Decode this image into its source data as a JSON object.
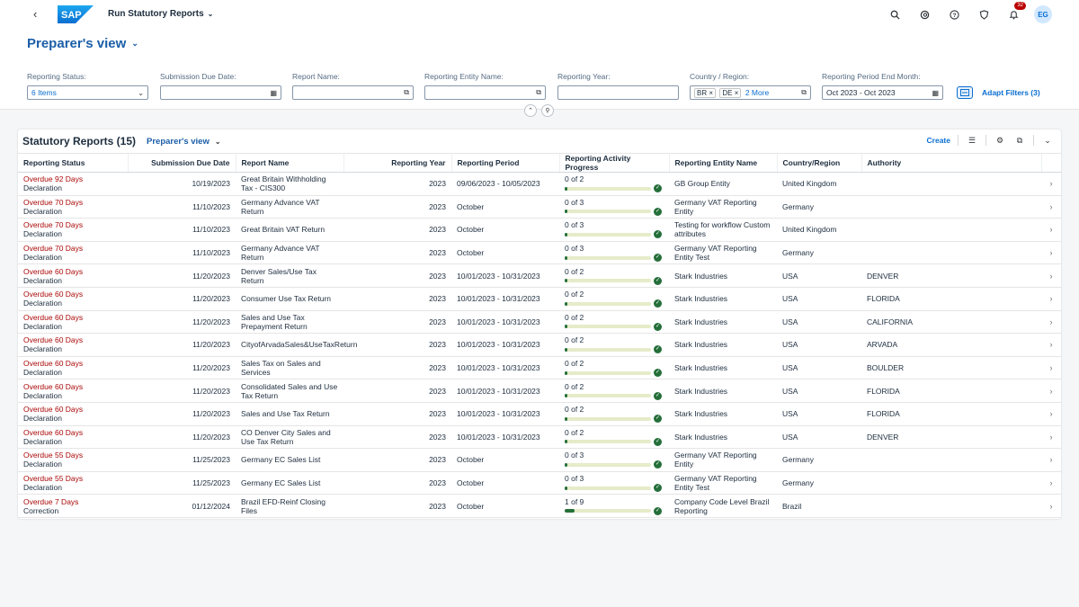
{
  "shell": {
    "back_icon": "chevron-left-icon",
    "logo_text": "SAP",
    "app_title": "Run Statutory Reports",
    "notification_count": "32",
    "avatar_initials": "EG"
  },
  "header": {
    "variant_name": "Preparer's view",
    "filters": [
      {
        "label": "Reporting Status:",
        "value": "6 Items"
      },
      {
        "label": "Submission Due Date:",
        "value": ""
      },
      {
        "label": "Report Name:",
        "value": ""
      },
      {
        "label": "Reporting Entity Name:",
        "value": ""
      },
      {
        "label": "Reporting Year:",
        "value": ""
      },
      {
        "label": "Country / Region:",
        "tokens": [
          "BR",
          "DE"
        ],
        "more": "2 More"
      },
      {
        "label": "Reporting Period End Month:",
        "value": "Oct 2023 - Oct 2023"
      }
    ],
    "adapt_filters": "Adapt Filters (3)"
  },
  "table": {
    "title": "Statutory Reports (15)",
    "variant_name": "Preparer's view",
    "create_label": "Create",
    "columns": [
      "Reporting Status",
      "Submission Due Date",
      "Report Name",
      "Reporting Year",
      "Reporting Period",
      "Reporting Activity Progress",
      "Reporting Entity Name",
      "Country/Region",
      "Authority"
    ],
    "rows": [
      {
        "status": "Overdue 92 Days",
        "type": "Declaration",
        "due": "10/19/2023",
        "name": "Great Britain Withholding Tax - CIS300",
        "year": "2023",
        "period": "09/06/2023 - 10/05/2023",
        "progress": "0 of 2",
        "progress_value": 0,
        "entity": "GB Group Entity",
        "country": "United Kingdom",
        "authority": ""
      },
      {
        "status": "Overdue 70 Days",
        "type": "Declaration",
        "due": "11/10/2023",
        "name": "Germany Advance VAT Return",
        "year": "2023",
        "period": "October",
        "progress": "0 of 3",
        "progress_value": 0,
        "entity": "Germany VAT Reporting Entity",
        "country": "Germany",
        "authority": ""
      },
      {
        "status": "Overdue 70 Days",
        "type": "Declaration",
        "due": "11/10/2023",
        "name": "Great Britain VAT Return",
        "year": "2023",
        "period": "October",
        "progress": "0 of 3",
        "progress_value": 0,
        "entity": "Testing for workflow Custom attributes",
        "country": "United Kingdom",
        "authority": ""
      },
      {
        "status": "Overdue 70 Days",
        "type": "Declaration",
        "due": "11/10/2023",
        "name": "Germany Advance VAT Return",
        "year": "2023",
        "period": "October",
        "progress": "0 of 3",
        "progress_value": 0,
        "entity": "Germany VAT Reporting Entity Test",
        "country": "Germany",
        "authority": ""
      },
      {
        "status": "Overdue 60 Days",
        "type": "Declaration",
        "due": "11/20/2023",
        "name": "Denver Sales/Use Tax Return",
        "year": "2023",
        "period": "10/01/2023 - 10/31/2023",
        "progress": "0 of 2",
        "progress_value": 0,
        "entity": "Stark Industries",
        "country": "USA",
        "authority": "DENVER"
      },
      {
        "status": "Overdue 60 Days",
        "type": "Declaration",
        "due": "11/20/2023",
        "name": "Consumer Use Tax Return",
        "year": "2023",
        "period": "10/01/2023 - 10/31/2023",
        "progress": "0 of 2",
        "progress_value": 0,
        "entity": "Stark Industries",
        "country": "USA",
        "authority": "FLORIDA"
      },
      {
        "status": "Overdue 60 Days",
        "type": "Declaration",
        "due": "11/20/2023",
        "name": "Sales and Use Tax Prepayment Return",
        "year": "2023",
        "period": "10/01/2023 - 10/31/2023",
        "progress": "0 of 2",
        "progress_value": 0,
        "entity": "Stark Industries",
        "country": "USA",
        "authority": "CALIFORNIA"
      },
      {
        "status": "Overdue 60 Days",
        "type": "Declaration",
        "due": "11/20/2023",
        "name": "CityofArvadaSales&UseTaxReturn",
        "year": "2023",
        "period": "10/01/2023 - 10/31/2023",
        "progress": "0 of 2",
        "progress_value": 0,
        "entity": "Stark Industries",
        "country": "USA",
        "authority": "ARVADA"
      },
      {
        "status": "Overdue 60 Days",
        "type": "Declaration",
        "due": "11/20/2023",
        "name": "Sales Tax on Sales and Services",
        "year": "2023",
        "period": "10/01/2023 - 10/31/2023",
        "progress": "0 of 2",
        "progress_value": 0,
        "entity": "Stark Industries",
        "country": "USA",
        "authority": "BOULDER"
      },
      {
        "status": "Overdue 60 Days",
        "type": "Declaration",
        "due": "11/20/2023",
        "name": "Consolidated Sales and Use Tax Return",
        "year": "2023",
        "period": "10/01/2023 - 10/31/2023",
        "progress": "0 of 2",
        "progress_value": 0,
        "entity": "Stark Industries",
        "country": "USA",
        "authority": "FLORIDA"
      },
      {
        "status": "Overdue 60 Days",
        "type": "Declaration",
        "due": "11/20/2023",
        "name": "Sales and Use Tax Return",
        "year": "2023",
        "period": "10/01/2023 - 10/31/2023",
        "progress": "0 of 2",
        "progress_value": 0,
        "entity": "Stark Industries",
        "country": "USA",
        "authority": "FLORIDA"
      },
      {
        "status": "Overdue 60 Days",
        "type": "Declaration",
        "due": "11/20/2023",
        "name": "CO Denver City Sales and Use Tax Return",
        "year": "2023",
        "period": "10/01/2023 - 10/31/2023",
        "progress": "0 of 2",
        "progress_value": 0,
        "entity": "Stark Industries",
        "country": "USA",
        "authority": "DENVER"
      },
      {
        "status": "Overdue 55 Days",
        "type": "Declaration",
        "due": "11/25/2023",
        "name": "Germany EC Sales List",
        "year": "2023",
        "period": "October",
        "progress": "0 of 3",
        "progress_value": 0,
        "entity": "Germany VAT Reporting Entity",
        "country": "Germany",
        "authority": ""
      },
      {
        "status": "Overdue 55 Days",
        "type": "Declaration",
        "due": "11/25/2023",
        "name": "Germany EC Sales List",
        "year": "2023",
        "period": "October",
        "progress": "0 of 3",
        "progress_value": 0,
        "entity": "Germany VAT Reporting Entity Test",
        "country": "Germany",
        "authority": ""
      },
      {
        "status": "Overdue 7 Days",
        "type": "Correction",
        "due": "01/12/2024",
        "name": "Brazil EFD-Reinf Closing Files",
        "year": "2023",
        "period": "October",
        "progress": "1 of 9",
        "progress_value": 0.111,
        "entity": "Company Code Level Brazil Reporting",
        "country": "Brazil",
        "authority": ""
      }
    ]
  }
}
